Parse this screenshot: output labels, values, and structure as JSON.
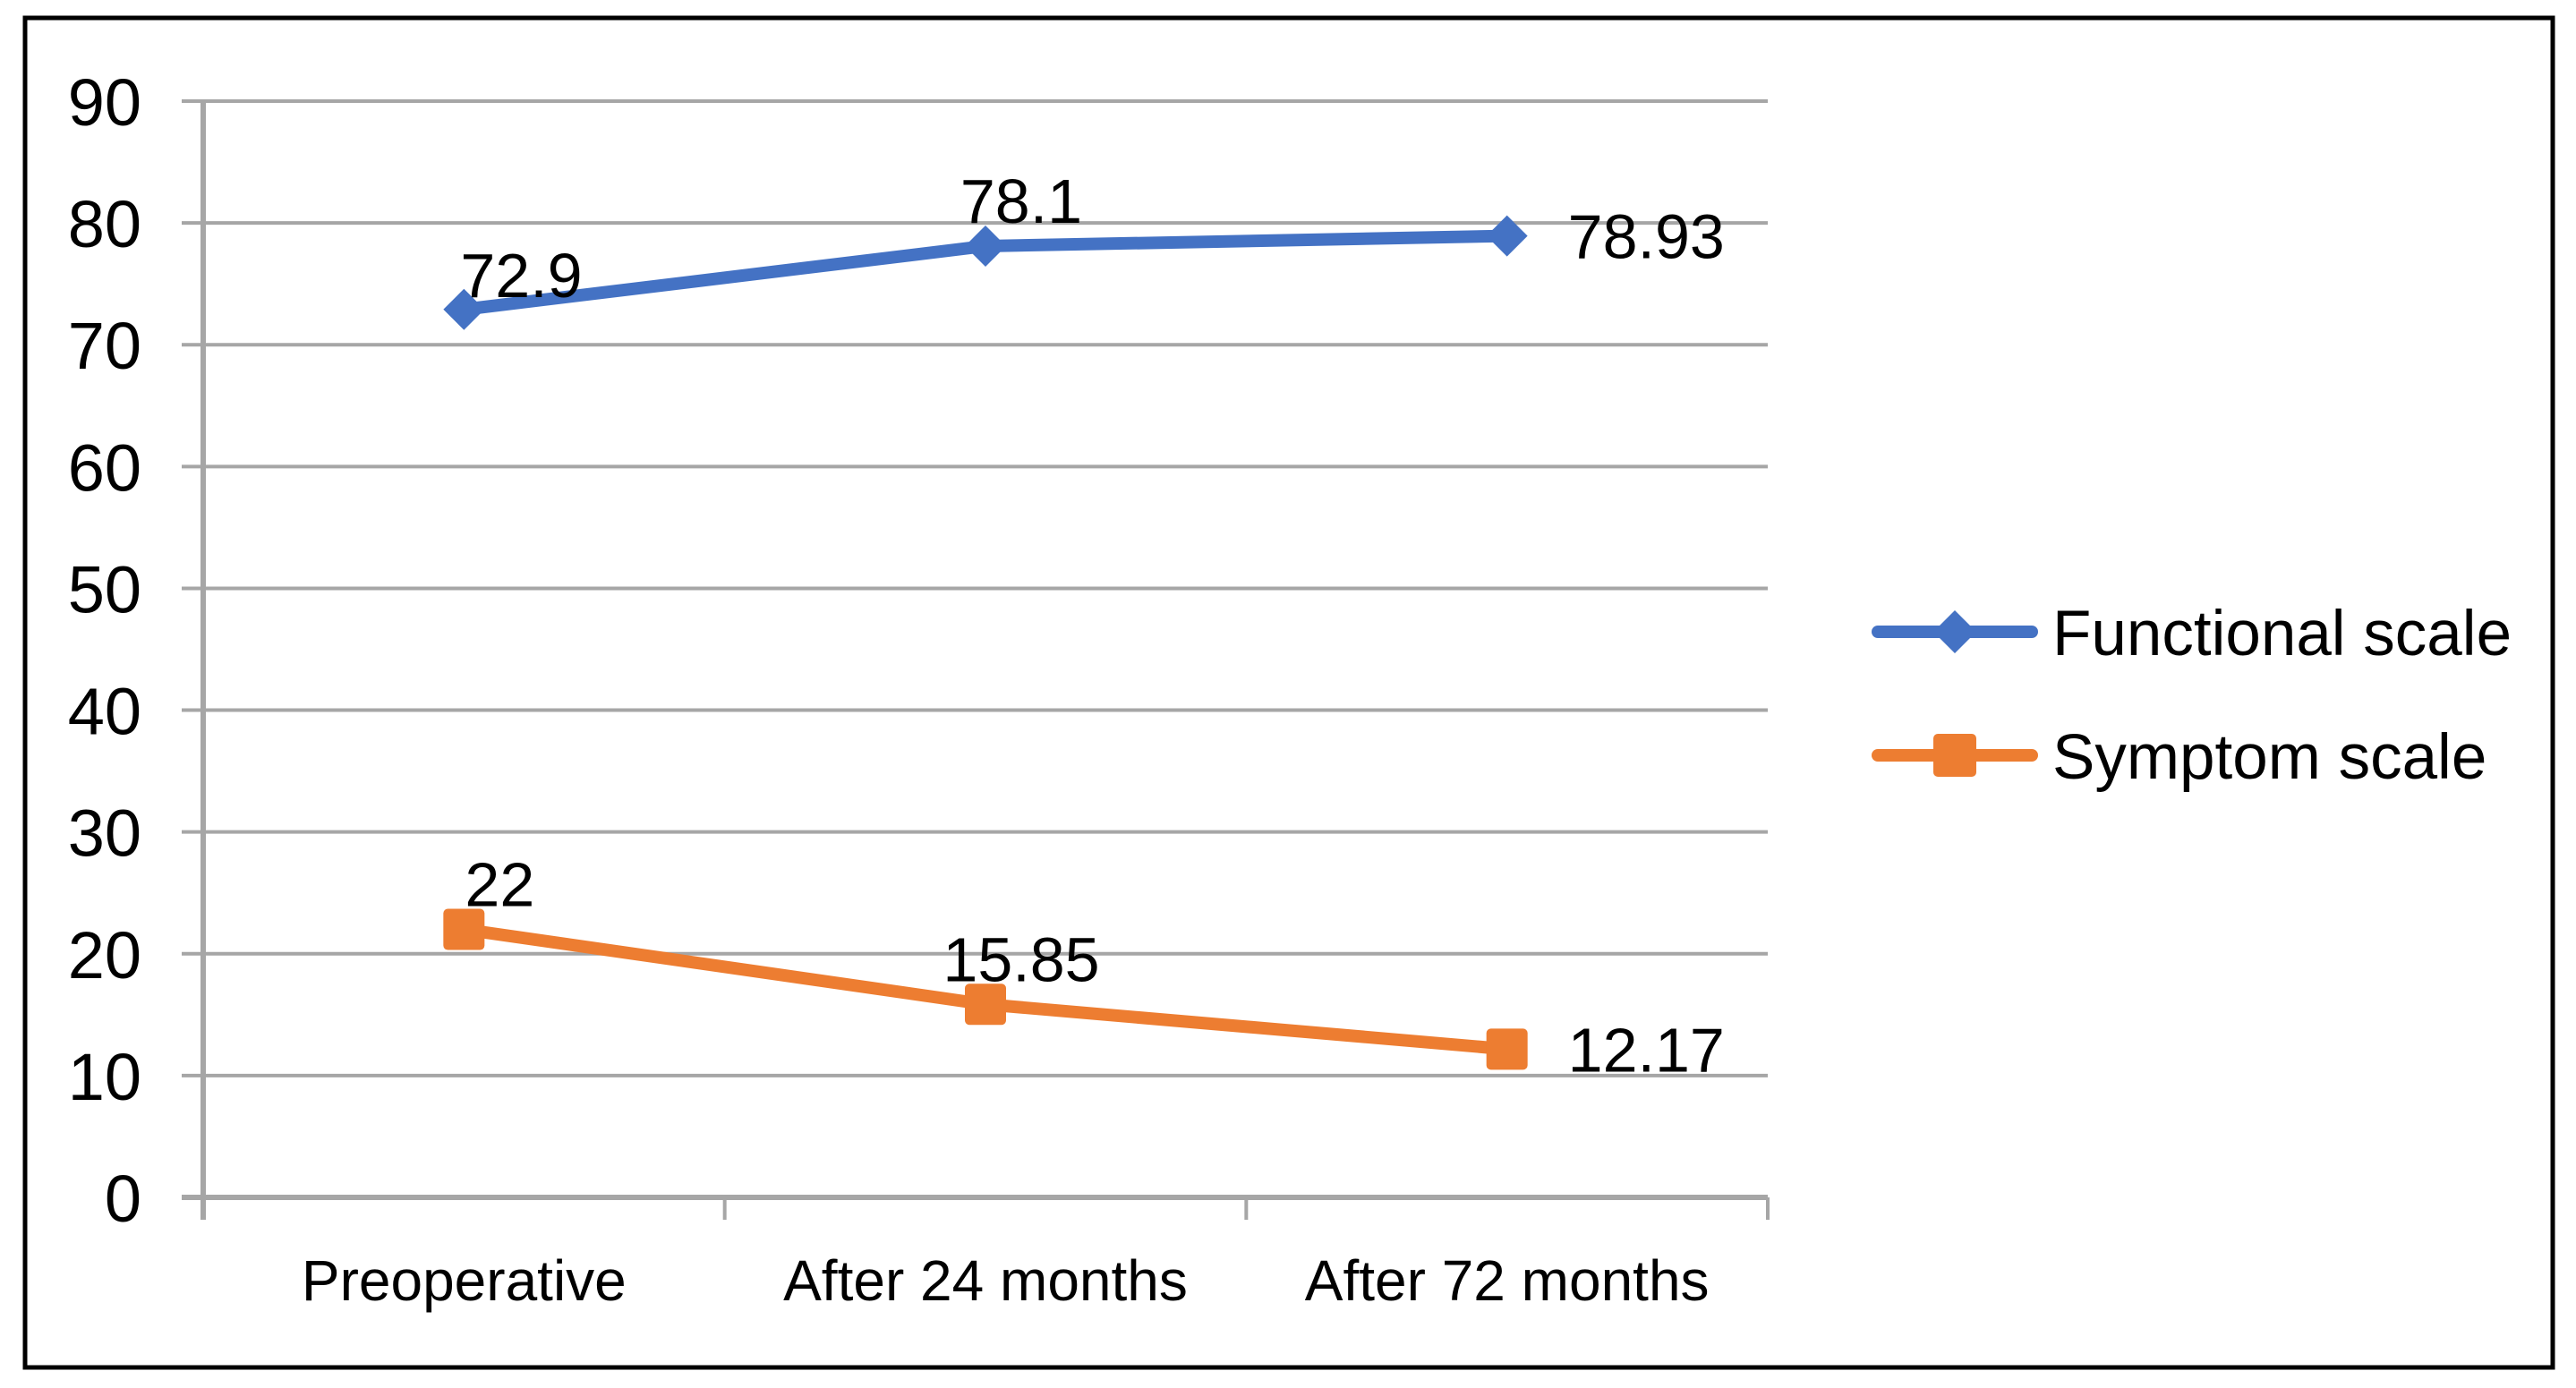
{
  "figure": {
    "kind": "line-chart-figure",
    "border_color": "#000000",
    "background": "#ffffff"
  },
  "chart_data": {
    "type": "line",
    "title": "",
    "categories": [
      "Preoperative",
      "After 24 months",
      "After 72 months"
    ],
    "series": [
      {
        "name": "Functional scale",
        "color": "#4472C4",
        "marker": "diamond",
        "values": [
          72.9,
          78.1,
          78.93
        ],
        "data_labels": [
          "72.9",
          "78.1",
          "78.93"
        ],
        "label_placements": [
          "above-right",
          "above",
          "right"
        ]
      },
      {
        "name": "Symptom scale",
        "color": "#ED7D31",
        "marker": "square",
        "values": [
          22,
          15.85,
          12.17
        ],
        "data_labels": [
          "22",
          "15.85",
          "12.17"
        ],
        "label_placements": [
          "above",
          "above",
          "right"
        ]
      }
    ],
    "y_axis": {
      "min": 0,
      "max": 90,
      "step": 10,
      "tick_labels": [
        "0",
        "10",
        "20",
        "30",
        "40",
        "50",
        "60",
        "70",
        "80",
        "90"
      ]
    },
    "x_axis": {
      "tick_labels": [
        "Preoperative",
        "After 24 months",
        "After 72 months"
      ]
    },
    "grid": "horizontal",
    "legend_position": "right",
    "colors": {
      "gridline": "#A6A6A6",
      "axis": "#A6A6A6",
      "text": "#000000",
      "series_blue": "#4472C4",
      "series_orange": "#ED7D31"
    }
  }
}
